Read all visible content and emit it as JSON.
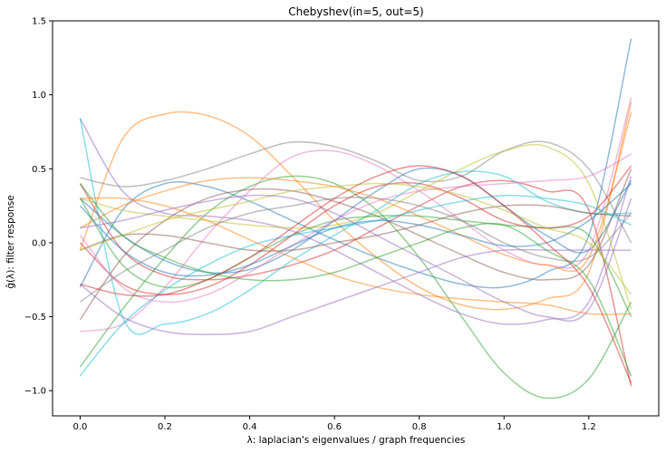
{
  "chart_data": {
    "type": "line",
    "title": "Chebyshev(in=5, out=5)",
    "xlabel": "λ: laplacian's eigenvalues / graph frequencies",
    "ylabel": "ĝ(λ): filter response",
    "xlim": [
      -0.065,
      1.365
    ],
    "ylim": [
      -1.17,
      1.5
    ],
    "xticks": [
      0.0,
      0.2,
      0.4,
      0.6,
      0.8,
      1.0,
      1.2
    ],
    "xtick_labels": [
      "0.0",
      "0.2",
      "0.4",
      "0.6",
      "0.8",
      "1.0",
      "1.2"
    ],
    "yticks": [
      -1.0,
      -0.5,
      0.0,
      0.5,
      1.0,
      1.5
    ],
    "ytick_labels": [
      "−1.0",
      "−0.5",
      "0.0",
      "0.5",
      "1.0",
      "1.5"
    ],
    "grid": false,
    "legend": "none",
    "line_opacity": 0.5,
    "x": [
      0.0,
      0.1,
      0.2,
      0.3,
      0.4,
      0.5,
      0.6,
      0.7,
      0.8,
      0.9,
      1.0,
      1.1,
      1.2,
      1.3
    ],
    "series": [
      {
        "color": "#1f77b4",
        "values": [
          -0.3,
          0.22,
          0.4,
          0.38,
          0.28,
          0.15,
          0.02,
          -0.1,
          -0.2,
          -0.28,
          -0.3,
          -0.2,
          0.05,
          1.38
        ]
      },
      {
        "color": "#ff7f0e",
        "values": [
          -0.05,
          0.7,
          0.87,
          0.86,
          0.72,
          0.45,
          0.15,
          -0.1,
          -0.3,
          -0.42,
          -0.45,
          -0.38,
          -0.2,
          0.95
        ]
      },
      {
        "color": "#2ca02c",
        "values": [
          -0.84,
          -0.45,
          -0.1,
          0.2,
          0.38,
          0.45,
          0.4,
          0.22,
          -0.1,
          -0.5,
          -0.88,
          -1.05,
          -0.92,
          -0.4
        ]
      },
      {
        "color": "#d62728",
        "values": [
          0.4,
          -0.05,
          -0.22,
          -0.25,
          -0.22,
          -0.15,
          -0.05,
          0.1,
          0.25,
          0.38,
          0.42,
          0.35,
          0.22,
          -0.97
        ]
      },
      {
        "color": "#9467bd",
        "values": [
          0.84,
          0.35,
          0.2,
          0.18,
          0.15,
          0.08,
          -0.05,
          -0.2,
          -0.35,
          -0.48,
          -0.55,
          -0.52,
          -0.4,
          0.45
        ]
      },
      {
        "color": "#8c564b",
        "values": [
          -0.52,
          -0.1,
          0.15,
          0.3,
          0.36,
          0.35,
          0.28,
          0.18,
          0.05,
          -0.08,
          -0.2,
          -0.25,
          -0.15,
          0.5
        ]
      },
      {
        "color": "#e377c2",
        "values": [
          -0.6,
          -0.55,
          -0.3,
          0.05,
          0.35,
          0.58,
          0.62,
          0.52,
          0.35,
          0.15,
          -0.05,
          -0.15,
          -0.05,
          0.98
        ]
      },
      {
        "color": "#7f7f7f",
        "values": [
          0.44,
          0.38,
          0.42,
          0.5,
          0.6,
          0.68,
          0.65,
          0.55,
          0.42,
          0.45,
          0.62,
          0.68,
          0.5,
          0.0
        ]
      },
      {
        "color": "#bcbd22",
        "values": [
          0.3,
          0.22,
          0.18,
          0.15,
          0.12,
          0.1,
          0.12,
          0.2,
          0.35,
          0.5,
          0.62,
          0.65,
          0.4,
          -0.45
        ]
      },
      {
        "color": "#17becf",
        "values": [
          0.84,
          -0.5,
          -0.55,
          -0.48,
          -0.32,
          -0.12,
          0.05,
          0.22,
          0.4,
          0.48,
          0.45,
          0.28,
          0.2,
          0.2
        ]
      },
      {
        "color": "#1f77b4",
        "values": [
          0.3,
          0.05,
          -0.12,
          -0.2,
          -0.18,
          -0.05,
          0.15,
          0.35,
          0.5,
          0.45,
          0.25,
          0.05,
          -0.05,
          0.42
        ]
      },
      {
        "color": "#ff7f0e",
        "values": [
          0.1,
          0.25,
          0.35,
          0.42,
          0.44,
          0.42,
          0.38,
          0.3,
          0.18,
          0.05,
          -0.08,
          -0.15,
          -0.1,
          0.88
        ]
      },
      {
        "color": "#2ca02c",
        "values": [
          0.3,
          -0.15,
          -0.3,
          -0.25,
          -0.1,
          0.05,
          0.15,
          0.18,
          0.18,
          0.15,
          0.12,
          0.1,
          0.05,
          -0.5
        ]
      },
      {
        "color": "#d62728",
        "values": [
          0.0,
          -0.28,
          -0.35,
          -0.3,
          -0.15,
          0.05,
          0.25,
          0.38,
          0.4,
          0.3,
          0.15,
          0.1,
          0.18,
          0.52
        ]
      },
      {
        "color": "#9467bd",
        "values": [
          -0.28,
          -0.5,
          -0.6,
          -0.62,
          -0.6,
          -0.5,
          -0.4,
          -0.3,
          -0.2,
          -0.1,
          -0.05,
          -0.05,
          -0.05,
          -0.05
        ]
      },
      {
        "color": "#8c564b",
        "values": [
          -0.05,
          0.05,
          0.05,
          0.0,
          -0.05,
          -0.05,
          0.0,
          0.05,
          0.12,
          0.2,
          0.25,
          0.25,
          0.2,
          0.18
        ]
      },
      {
        "color": "#e377c2",
        "values": [
          0.05,
          -0.3,
          -0.4,
          -0.35,
          -0.2,
          -0.02,
          0.15,
          0.28,
          0.35,
          0.38,
          0.4,
          0.42,
          0.45,
          0.6
        ]
      },
      {
        "color": "#7f7f7f",
        "values": [
          -0.4,
          -0.2,
          -0.05,
          0.1,
          0.2,
          0.25,
          0.3,
          0.3,
          0.25,
          0.15,
          0.0,
          -0.1,
          -0.1,
          0.2
        ]
      },
      {
        "color": "#bcbd22",
        "values": [
          -0.05,
          0.05,
          0.15,
          0.22,
          0.28,
          0.35,
          0.38,
          0.4,
          0.38,
          0.32,
          0.22,
          0.1,
          0.0,
          -0.35
        ]
      },
      {
        "color": "#17becf",
        "values": [
          -0.9,
          -0.55,
          -0.32,
          -0.15,
          -0.02,
          0.05,
          0.1,
          0.15,
          0.22,
          0.28,
          0.32,
          0.3,
          0.25,
          0.12
        ]
      },
      {
        "color": "#1f77b4",
        "values": [
          0.25,
          -0.05,
          -0.2,
          -0.22,
          -0.15,
          -0.02,
          0.1,
          0.15,
          0.12,
          0.05,
          -0.02,
          0.0,
          0.15,
          0.4
        ]
      },
      {
        "color": "#ff7f0e",
        "values": [
          0.3,
          0.3,
          0.25,
          0.15,
          0.02,
          -0.1,
          -0.22,
          -0.3,
          -0.35,
          -0.38,
          -0.4,
          -0.42,
          -0.48,
          -0.48
        ]
      },
      {
        "color": "#2ca02c",
        "values": [
          0.4,
          0.05,
          -0.1,
          -0.2,
          -0.25,
          -0.25,
          -0.2,
          -0.1,
          0.0,
          0.1,
          0.12,
          -0.05,
          -0.25,
          -0.9
        ]
      },
      {
        "color": "#d62728",
        "values": [
          -0.28,
          -0.35,
          -0.35,
          -0.25,
          -0.1,
          0.1,
          0.3,
          0.45,
          0.52,
          0.45,
          0.25,
          0.0,
          -0.3,
          -0.95
        ]
      },
      {
        "color": "#9467bd",
        "values": [
          0.1,
          0.15,
          0.22,
          0.28,
          0.32,
          0.3,
          0.2,
          0.05,
          -0.1,
          -0.25,
          -0.4,
          -0.5,
          -0.45,
          0.3
        ]
      }
    ]
  }
}
